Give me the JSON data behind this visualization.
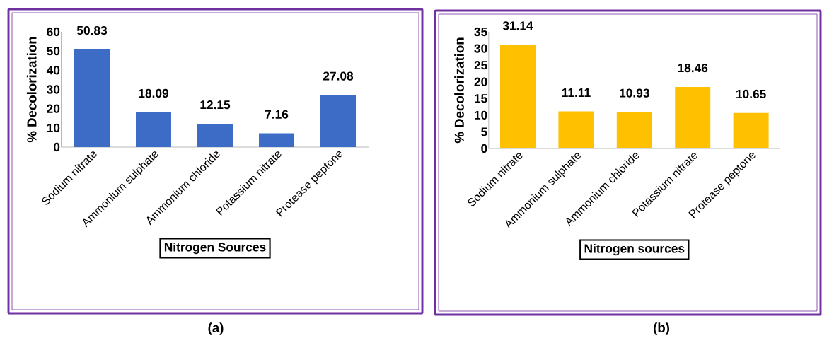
{
  "chart_data": [
    {
      "type": "bar",
      "categories": [
        "Sodium nitrate",
        "Ammonium sulphate",
        "Ammonium chloride",
        "Potassium nitrate",
        "Protease peptone"
      ],
      "values": [
        50.83,
        18.09,
        12.15,
        7.16,
        27.08
      ],
      "color": "#3d6cc6",
      "ylim": [
        0,
        60
      ],
      "yticks": [
        0,
        10,
        20,
        30,
        40,
        50,
        60
      ],
      "ylabel": "% Decolorization",
      "xlabel": "Nitrogen Sources",
      "data_labels": true,
      "annotations": [
        "(a)"
      ]
    },
    {
      "type": "bar",
      "categories": [
        "Sodium nitrate",
        "Ammonium sulphate",
        "Ammonium chloride",
        "Potassium nitrate",
        "Protease peptone"
      ],
      "values": [
        31.14,
        11.11,
        10.93,
        18.46,
        10.65
      ],
      "color": "#ffc000",
      "ylim": [
        0,
        35
      ],
      "yticks": [
        0,
        5,
        10,
        15,
        20,
        25,
        30,
        35
      ],
      "ylabel": "% Decolorization",
      "xlabel": "Nitrogen sources",
      "data_labels": true,
      "annotations": [
        "(b)"
      ]
    }
  ]
}
